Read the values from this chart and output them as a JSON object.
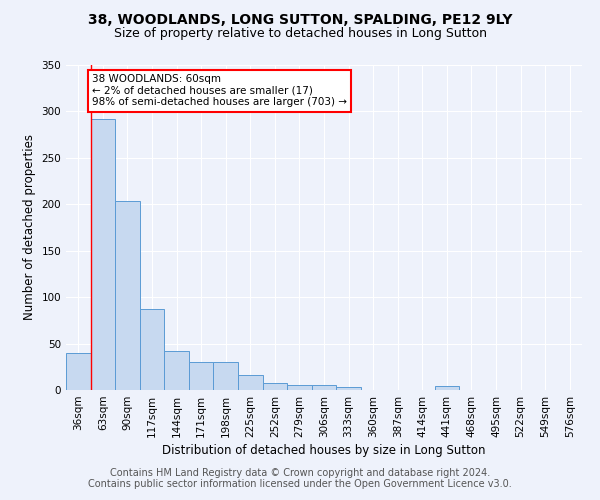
{
  "title": "38, WOODLANDS, LONG SUTTON, SPALDING, PE12 9LY",
  "subtitle": "Size of property relative to detached houses in Long Sutton",
  "xlabel": "Distribution of detached houses by size in Long Sutton",
  "ylabel": "Number of detached properties",
  "categories": [
    "36sqm",
    "63sqm",
    "90sqm",
    "117sqm",
    "144sqm",
    "171sqm",
    "198sqm",
    "225sqm",
    "252sqm",
    "279sqm",
    "306sqm",
    "333sqm",
    "360sqm",
    "387sqm",
    "414sqm",
    "441sqm",
    "468sqm",
    "495sqm",
    "522sqm",
    "549sqm",
    "576sqm"
  ],
  "values": [
    40,
    292,
    204,
    87,
    42,
    30,
    30,
    16,
    8,
    5,
    5,
    3,
    0,
    0,
    0,
    4,
    0,
    0,
    0,
    0,
    0
  ],
  "bar_color": "#c7d9f0",
  "bar_edge_color": "#5b9bd5",
  "annotation_line1": "38 WOODLANDS: 60sqm",
  "annotation_line2": "← 2% of detached houses are smaller (17)",
  "annotation_line3": "98% of semi-detached houses are larger (703) →",
  "annotation_box_color": "white",
  "annotation_box_edge_color": "red",
  "highlight_line_color": "red",
  "ylim": [
    0,
    350
  ],
  "yticks": [
    0,
    50,
    100,
    150,
    200,
    250,
    300,
    350
  ],
  "footer_line1": "Contains HM Land Registry data © Crown copyright and database right 2024.",
  "footer_line2": "Contains public sector information licensed under the Open Government Licence v3.0.",
  "background_color": "#eef2fb",
  "grid_color": "#ffffff",
  "title_fontsize": 10,
  "subtitle_fontsize": 9,
  "axis_label_fontsize": 8.5,
  "tick_fontsize": 7.5,
  "annotation_fontsize": 7.5,
  "footer_fontsize": 7
}
